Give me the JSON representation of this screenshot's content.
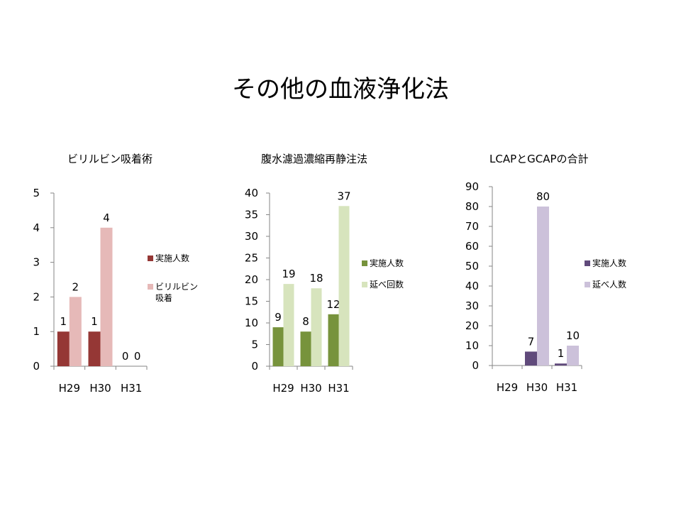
{
  "slide": {
    "title": "その他の血液浄化法"
  },
  "chart_data": [
    {
      "type": "bar",
      "title": "ビリルビン吸着術",
      "categories": [
        "H29",
        "H30",
        "H31"
      ],
      "ylim": [
        0,
        5
      ],
      "yticks": [
        0,
        1,
        2,
        3,
        4,
        5
      ],
      "series": [
        {
          "name": "実施人数",
          "values": [
            1,
            1,
            0
          ],
          "color": "#953735"
        },
        {
          "name": "ビリルビン吸着",
          "legend_lines": [
            "ビリルビン",
            "吸着"
          ],
          "values": [
            2,
            4,
            0
          ],
          "color": "#e6b9b8"
        }
      ],
      "legend_position": "right"
    },
    {
      "type": "bar",
      "title": "腹水濾過濃縮再静注法",
      "categories": [
        "H29",
        "H30",
        "H31"
      ],
      "ylim": [
        0,
        40
      ],
      "yticks": [
        0,
        5,
        10,
        15,
        20,
        25,
        30,
        35,
        40
      ],
      "series": [
        {
          "name": "実施人数",
          "values": [
            9,
            8,
            12
          ],
          "color": "#77933c"
        },
        {
          "name": "延べ回数",
          "values": [
            19,
            18,
            37
          ],
          "color": "#d7e4bd"
        }
      ],
      "legend_position": "right"
    },
    {
      "type": "bar",
      "title": "LCAPとGCAPの合計",
      "categories": [
        "H29",
        "H30",
        "H31"
      ],
      "ylim": [
        0,
        90
      ],
      "yticks": [
        0,
        10,
        20,
        30,
        40,
        50,
        60,
        70,
        80,
        90
      ],
      "series": [
        {
          "name": "実施人数",
          "values": [
            0,
            7,
            1
          ],
          "color": "#604a7b",
          "show_labels": [
            false,
            true,
            true
          ]
        },
        {
          "name": "延べ人数",
          "values": [
            0,
            80,
            10
          ],
          "color": "#ccc1da",
          "show_labels": [
            false,
            true,
            true
          ]
        }
      ],
      "legend_position": "right"
    }
  ]
}
